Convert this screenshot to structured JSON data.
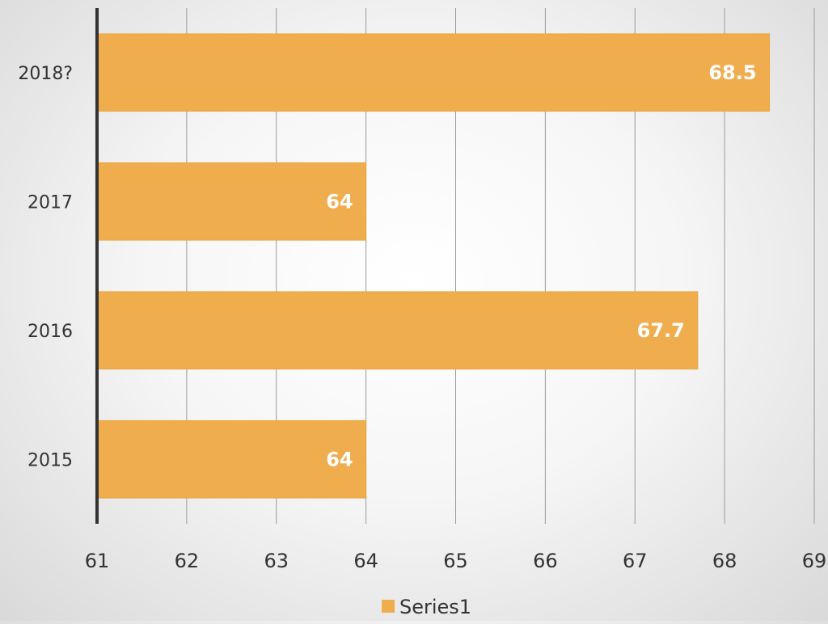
{
  "chart_data": {
    "type": "bar",
    "orientation": "horizontal",
    "categories": [
      "2018?",
      "2017",
      "2016",
      "2015"
    ],
    "series": [
      {
        "name": "Series1",
        "values": [
          68.5,
          64,
          67.7,
          64
        ],
        "data_labels": [
          "68.5",
          "64",
          "67.7",
          "64"
        ]
      }
    ],
    "xlim": [
      61,
      69
    ],
    "x_ticks": [
      "61",
      "62",
      "63",
      "64",
      "65",
      "66",
      "67",
      "68",
      "69"
    ],
    "grid": true,
    "legend": {
      "placement": "bottom",
      "entries": [
        "Series1"
      ]
    },
    "colors": {
      "bar": "#F0AD4E",
      "bar_edge": "#E9A640",
      "grid": "#9a9a9a",
      "axis": "#333333",
      "data_label": "#ffffff"
    }
  }
}
